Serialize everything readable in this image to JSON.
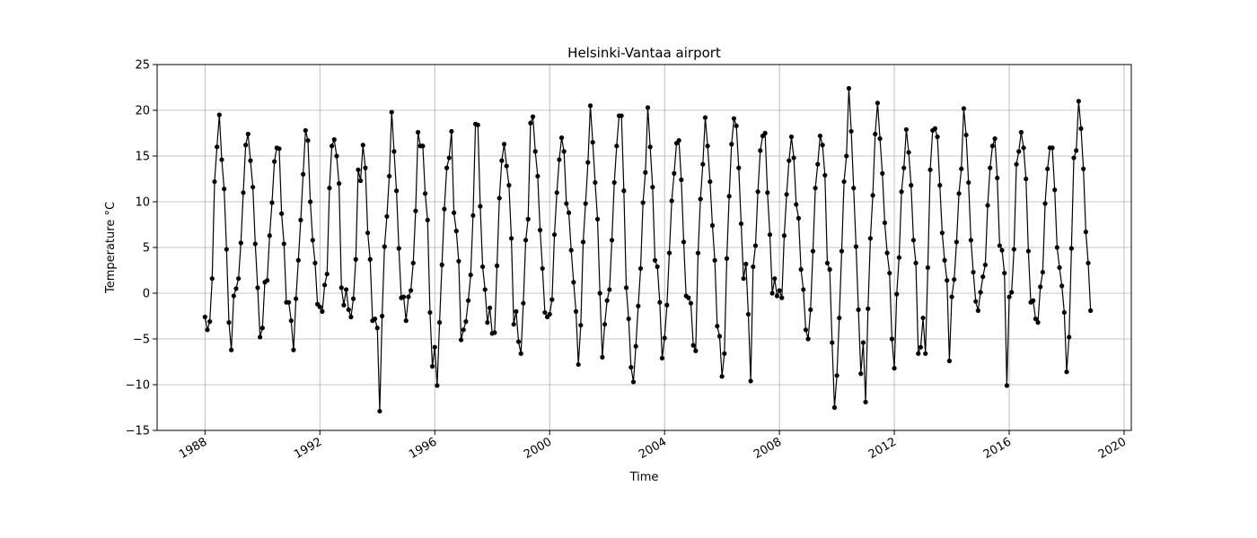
{
  "chart_data": {
    "type": "line",
    "title": "Helsinki-Vantaa airport",
    "xlabel": "Time",
    "ylabel": "Temperature °C",
    "xlim": [
      "1986-05-01",
      "2020-04-01"
    ],
    "ylim": [
      -15,
      25
    ],
    "x_ticks": [
      "1988",
      "1992",
      "1996",
      "2000",
      "2004",
      "2008",
      "2012",
      "2016",
      "2020"
    ],
    "y_ticks": [
      "−15",
      "−10",
      "−5",
      "0",
      "5",
      "10",
      "15",
      "20",
      "25"
    ],
    "grid": true,
    "marker": "circle",
    "line_color": "#000000",
    "series": [
      {
        "start": "1988-01",
        "frequency": "monthly",
        "values": [
          -2.6,
          -4.0,
          -3.1,
          1.6,
          12.2,
          16.0,
          19.5,
          14.6,
          11.4,
          4.8,
          -3.2,
          -6.2,
          -0.3,
          0.5,
          1.6,
          5.5,
          11.0,
          16.2,
          17.4,
          14.5,
          11.6,
          5.4,
          0.6,
          -4.8,
          -3.8,
          1.2,
          1.4,
          6.3,
          9.9,
          14.4,
          15.9,
          15.8,
          8.7,
          5.4,
          -1.0,
          -1.0,
          -3.0,
          -6.2,
          -0.6,
          3.6,
          8.0,
          13.0,
          17.8,
          16.7,
          10.0,
          5.8,
          3.3,
          -1.2,
          -1.5,
          -2.0,
          0.9,
          2.1,
          11.5,
          16.1,
          16.8,
          15.0,
          12.0,
          0.6,
          -1.3,
          0.4,
          -1.8,
          -2.6,
          -0.6,
          3.7,
          13.5,
          12.3,
          16.2,
          13.7,
          6.6,
          3.7,
          -3.0,
          -2.8,
          -3.8,
          -12.9,
          -2.5,
          5.1,
          8.4,
          12.8,
          19.8,
          15.5,
          11.2,
          4.9,
          -0.5,
          -0.4,
          -3.0,
          -0.4,
          0.3,
          3.3,
          9.0,
          17.6,
          16.1,
          16.1,
          10.9,
          8.0,
          -2.1,
          -8.0,
          -5.9,
          -10.1,
          -3.2,
          3.1,
          9.2,
          13.7,
          14.8,
          17.7,
          8.8,
          6.8,
          3.5,
          -5.1,
          -4.0,
          -3.1,
          -0.8,
          2.0,
          8.5,
          18.5,
          18.4,
          9.5,
          2.9,
          0.4,
          -3.2,
          -1.6,
          -4.4,
          -4.3,
          3.0,
          10.4,
          14.5,
          16.3,
          13.9,
          11.8,
          6.0,
          -3.4,
          -2.0,
          -5.3,
          -6.6,
          -1.1,
          5.8,
          8.1,
          18.6,
          19.3,
          15.5,
          12.8,
          6.9,
          2.7,
          -2.1,
          -2.6,
          -2.3,
          -0.7,
          6.4,
          11.0,
          14.6,
          17.0,
          15.5,
          9.8,
          8.8,
          4.7,
          1.2,
          -2.0,
          -7.8,
          -3.5,
          5.6,
          9.8,
          14.3,
          20.5,
          16.5,
          12.1,
          8.1,
          0.0,
          -7.0,
          -3.4,
          -0.8,
          0.4,
          5.8,
          12.1,
          16.1,
          19.4,
          19.4,
          11.2,
          0.6,
          -2.8,
          -8.1,
          -9.7,
          -5.8,
          -1.4,
          2.7,
          9.9,
          13.2,
          20.3,
          16.0,
          11.6,
          3.6,
          2.9,
          -1.0,
          -7.1,
          -4.9,
          -1.3,
          4.4,
          10.1,
          13.1,
          16.4,
          16.7,
          12.4,
          5.6,
          -0.3,
          -0.5,
          -1.1,
          -5.7,
          -6.3,
          4.4,
          10.3,
          14.1,
          19.2,
          16.1,
          12.2,
          7.4,
          3.6,
          -3.6,
          -4.7,
          -9.1,
          -6.6,
          3.8,
          10.6,
          16.3,
          19.1,
          18.3,
          13.7,
          7.6,
          1.6,
          3.2,
          -2.3,
          -9.6,
          2.9,
          5.2,
          11.1,
          15.6,
          17.2,
          17.5,
          11.0,
          6.4,
          0.0,
          1.6,
          -0.3,
          0.3,
          -0.5,
          6.3,
          10.8,
          14.5,
          17.1,
          14.8,
          9.7,
          8.2,
          2.6,
          0.4,
          -4.0,
          -5.0,
          -1.8,
          4.6,
          11.5,
          14.1,
          17.2,
          16.2,
          12.9,
          3.3,
          2.6,
          -5.4,
          -12.5,
          -9.0,
          -2.7,
          4.6,
          12.2,
          15.0,
          22.4,
          17.7,
          11.5,
          5.1,
          -1.8,
          -8.8,
          -5.4,
          -11.9,
          -1.7,
          6.0,
          10.7,
          17.4,
          20.8,
          16.9,
          13.1,
          7.7,
          4.4,
          2.2,
          -5.0,
          -8.2,
          -0.1,
          3.9,
          11.1,
          13.7,
          17.9,
          15.4,
          11.8,
          5.8,
          3.3,
          -6.6,
          -5.9,
          -2.7,
          -6.6,
          2.8,
          13.5,
          17.8,
          18.0,
          17.1,
          11.8,
          6.6,
          3.6,
          1.4,
          -7.4,
          -0.4,
          1.5,
          5.6,
          10.9,
          13.6,
          20.2,
          17.3,
          12.1,
          5.8,
          2.3,
          -0.9,
          -1.9,
          0.1,
          1.8,
          3.1,
          9.6,
          13.7,
          16.1,
          16.9,
          12.6,
          5.2,
          4.7,
          2.2,
          -10.1,
          -0.4,
          0.1,
          4.8,
          14.1,
          15.5,
          17.6,
          15.9,
          12.5,
          4.6,
          -1.0,
          -0.8,
          -2.8,
          -3.2,
          0.7,
          2.3,
          9.8,
          13.6,
          15.9,
          15.9,
          11.3,
          5.0,
          2.8,
          0.8,
          -2.1,
          -8.6,
          -4.8,
          4.9,
          14.8,
          15.6,
          21.0,
          18.0,
          13.6,
          6.7,
          3.3,
          -1.9
        ]
      }
    ]
  }
}
